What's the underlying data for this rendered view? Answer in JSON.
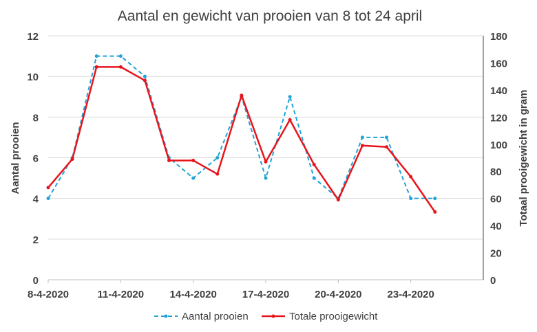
{
  "chart_data": {
    "type": "line",
    "title": "Aantal en gewicht van prooien van 8 tot 24 april",
    "ylabel_left": "Aantal prooien",
    "ylabel_right": "Totaal prooigewicht in gram",
    "ylim_left": [
      0,
      12
    ],
    "ylim_right": [
      0,
      180
    ],
    "yticks_left": [
      "0",
      "2",
      "4",
      "6",
      "8",
      "10",
      "12"
    ],
    "yticks_right": [
      "0",
      "20",
      "40",
      "60",
      "80",
      "100",
      "120",
      "140",
      "160",
      "180"
    ],
    "xticks": [
      "8-4-2020",
      "11-4-2020",
      "14-4-2020",
      "17-4-2020",
      "20-4-2020",
      "23-4-2020"
    ],
    "x_days": [
      8,
      9,
      10,
      11,
      12,
      13,
      14,
      15,
      16,
      17,
      18,
      19,
      20,
      21,
      22,
      23,
      24
    ],
    "x_start_label": "8-4-2020",
    "grid": true,
    "legend_position": "bottom",
    "series": [
      {
        "name": "Aantal prooien",
        "axis": "left",
        "color": "#1fa3d8",
        "style": "dashed",
        "values": [
          4,
          6,
          11,
          11,
          10,
          6,
          5,
          6,
          9,
          5,
          9,
          5,
          4,
          7,
          7,
          4,
          4
        ]
      },
      {
        "name": "Totale prooigewicht",
        "axis": "right",
        "color": "#e8141b",
        "style": "solid",
        "values": [
          68,
          89,
          157,
          157,
          147,
          88,
          88,
          78,
          136,
          87,
          118,
          85,
          59,
          99,
          98,
          76,
          50
        ]
      }
    ]
  }
}
